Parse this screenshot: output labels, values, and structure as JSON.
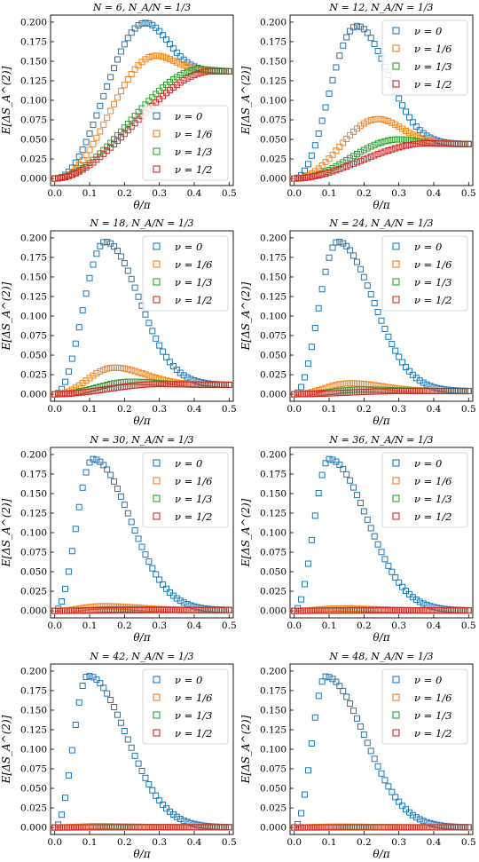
{
  "colors": {
    "series": [
      "#1f77b4",
      "#ff7f0e",
      "#2ca02c",
      "#d62728"
    ],
    "axis": "#000000",
    "legend_border": "#cccccc"
  },
  "chart_data": [
    {
      "type": "scatter",
      "marker": "open-square",
      "title": "N = 6, N_A/N = 1/3",
      "xlabel": "θ/π",
      "ylabel": "E[ΔS_A^(2)]",
      "xlim": [
        0.0,
        0.5
      ],
      "ylim": [
        0.0,
        0.2
      ],
      "legend": "bottom-right",
      "xticks": [
        "0.0",
        "0.1",
        "0.2",
        "0.3",
        "0.4",
        "0.5"
      ],
      "yticks": [
        "0.000",
        "0.025",
        "0.050",
        "0.075",
        "0.100",
        "0.125",
        "0.150",
        "0.175",
        "0.200"
      ],
      "series": [
        {
          "name": "ν = 0",
          "peak_x": 0.26,
          "peak_y": 0.199,
          "end_y": 0.137,
          "shape": "peak"
        },
        {
          "name": "ν = 1/6",
          "peak_x": 0.29,
          "peak_y": 0.157,
          "end_y": 0.137,
          "shape": "peak"
        },
        {
          "name": "ν = 1/3",
          "peak_x": 0.42,
          "peak_y": 0.14,
          "end_y": 0.137,
          "shape": "plateau"
        },
        {
          "name": "ν = 1/2",
          "peak_x": 0.45,
          "peak_y": 0.137,
          "end_y": 0.137,
          "shape": "plateau"
        }
      ]
    },
    {
      "type": "scatter",
      "marker": "open-square",
      "title": "N = 12, N_A/N = 1/3",
      "xlabel": "θ/π",
      "ylabel": "E[ΔS_A^(2)]",
      "xlim": [
        0.0,
        0.5
      ],
      "ylim": [
        0.0,
        0.2
      ],
      "legend": "top-right",
      "xticks": [
        "0.0",
        "0.1",
        "0.2",
        "0.3",
        "0.4",
        "0.5"
      ],
      "yticks": [
        "0.000",
        "0.025",
        "0.050",
        "0.075",
        "0.100",
        "0.125",
        "0.150",
        "0.175",
        "0.200"
      ],
      "series": [
        {
          "name": "ν = 0",
          "peak_x": 0.18,
          "peak_y": 0.195,
          "end_y": 0.044,
          "shape": "peak"
        },
        {
          "name": "ν = 1/6",
          "peak_x": 0.24,
          "peak_y": 0.076,
          "end_y": 0.044,
          "shape": "peak"
        },
        {
          "name": "ν = 1/3",
          "peak_x": 0.3,
          "peak_y": 0.05,
          "end_y": 0.044,
          "shape": "peak"
        },
        {
          "name": "ν = 1/2",
          "peak_x": 0.38,
          "peak_y": 0.045,
          "end_y": 0.044,
          "shape": "plateau"
        }
      ]
    },
    {
      "type": "scatter",
      "marker": "open-square",
      "title": "N = 18, N_A/N = 1/3",
      "xlabel": "θ/π",
      "ylabel": "E[ΔS_A^(2)]",
      "xlim": [
        0.0,
        0.5
      ],
      "ylim": [
        0.0,
        0.2
      ],
      "legend": "top-right",
      "xticks": [
        "0.0",
        "0.1",
        "0.2",
        "0.3",
        "0.4",
        "0.5"
      ],
      "yticks": [
        "0.000",
        "0.025",
        "0.050",
        "0.075",
        "0.100",
        "0.125",
        "0.150",
        "0.175",
        "0.200"
      ],
      "series": [
        {
          "name": "ν = 0",
          "peak_x": 0.145,
          "peak_y": 0.195,
          "end_y": 0.012,
          "shape": "peak"
        },
        {
          "name": "ν = 1/6",
          "peak_x": 0.17,
          "peak_y": 0.034,
          "end_y": 0.012,
          "shape": "peak"
        },
        {
          "name": "ν = 1/3",
          "peak_x": 0.22,
          "peak_y": 0.016,
          "end_y": 0.012,
          "shape": "peak"
        },
        {
          "name": "ν = 1/2",
          "peak_x": 0.3,
          "peak_y": 0.013,
          "end_y": 0.012,
          "shape": "plateau"
        }
      ]
    },
    {
      "type": "scatter",
      "marker": "open-square",
      "title": "N = 24, N_A/N = 1/3",
      "xlabel": "θ/π",
      "ylabel": "E[ΔS_A^(2)]",
      "xlim": [
        0.0,
        0.5
      ],
      "ylim": [
        0.0,
        0.2
      ],
      "legend": "top-right",
      "xticks": [
        "0.0",
        "0.1",
        "0.2",
        "0.3",
        "0.4",
        "0.5"
      ],
      "yticks": [
        "0.000",
        "0.025",
        "0.050",
        "0.075",
        "0.100",
        "0.125",
        "0.150",
        "0.175",
        "0.200"
      ],
      "series": [
        {
          "name": "ν = 0",
          "peak_x": 0.125,
          "peak_y": 0.195,
          "end_y": 0.004,
          "shape": "peak"
        },
        {
          "name": "ν = 1/6",
          "peak_x": 0.16,
          "peak_y": 0.014,
          "end_y": 0.004,
          "shape": "peak"
        },
        {
          "name": "ν = 1/3",
          "peak_x": 0.2,
          "peak_y": 0.006,
          "end_y": 0.004,
          "shape": "peak"
        },
        {
          "name": "ν = 1/2",
          "peak_x": 0.3,
          "peak_y": 0.004,
          "end_y": 0.004,
          "shape": "plateau"
        }
      ]
    },
    {
      "type": "scatter",
      "marker": "open-square",
      "title": "N = 30, N_A/N = 1/3",
      "xlabel": "θ/π",
      "ylabel": "E[ΔS_A^(2)]",
      "xlim": [
        0.0,
        0.5
      ],
      "ylim": [
        0.0,
        0.2
      ],
      "legend": "top-right",
      "xticks": [
        "0.0",
        "0.1",
        "0.2",
        "0.3",
        "0.4",
        "0.5"
      ],
      "yticks": [
        "0.000",
        "0.025",
        "0.050",
        "0.075",
        "0.100",
        "0.125",
        "0.150",
        "0.175",
        "0.200"
      ],
      "series": [
        {
          "name": "ν = 0",
          "peak_x": 0.11,
          "peak_y": 0.194,
          "end_y": 0.001,
          "shape": "peak"
        },
        {
          "name": "ν = 1/6",
          "peak_x": 0.14,
          "peak_y": 0.006,
          "end_y": 0.001,
          "shape": "peak"
        },
        {
          "name": "ν = 1/3",
          "peak_x": 0.2,
          "peak_y": 0.002,
          "end_y": 0.001,
          "shape": "peak"
        },
        {
          "name": "ν = 1/2",
          "peak_x": 0.3,
          "peak_y": 0.001,
          "end_y": 0.001,
          "shape": "plateau"
        }
      ]
    },
    {
      "type": "scatter",
      "marker": "open-square",
      "title": "N = 36, N_A/N = 1/3",
      "xlabel": "θ/π",
      "ylabel": "E[ΔS_A^(2)]",
      "xlim": [
        0.0,
        0.5
      ],
      "ylim": [
        0.0,
        0.2
      ],
      "legend": "top-right",
      "xticks": [
        "0.0",
        "0.1",
        "0.2",
        "0.3",
        "0.4",
        "0.5"
      ],
      "yticks": [
        "0.000",
        "0.025",
        "0.050",
        "0.075",
        "0.100",
        "0.125",
        "0.150",
        "0.175",
        "0.200"
      ],
      "series": [
        {
          "name": "ν = 0",
          "peak_x": 0.1,
          "peak_y": 0.194,
          "end_y": 0.0005,
          "shape": "peak"
        },
        {
          "name": "ν = 1/6",
          "peak_x": 0.13,
          "peak_y": 0.003,
          "end_y": 0.0005,
          "shape": "peak"
        },
        {
          "name": "ν = 1/3",
          "peak_x": 0.2,
          "peak_y": 0.001,
          "end_y": 0.0005,
          "shape": "peak"
        },
        {
          "name": "ν = 1/2",
          "peak_x": 0.3,
          "peak_y": 0.0005,
          "end_y": 0.0005,
          "shape": "plateau"
        }
      ]
    },
    {
      "type": "scatter",
      "marker": "open-square",
      "title": "N = 42, N_A/N = 1/3",
      "xlabel": "θ/π",
      "ylabel": "E[ΔS_A^(2)]",
      "xlim": [
        0.0,
        0.5
      ],
      "ylim": [
        0.0,
        0.2
      ],
      "legend": "top-right",
      "xticks": [
        "0.0",
        "0.1",
        "0.2",
        "0.3",
        "0.4",
        "0.5"
      ],
      "yticks": [
        "0.000",
        "0.025",
        "0.050",
        "0.075",
        "0.100",
        "0.125",
        "0.150",
        "0.175",
        "0.200"
      ],
      "series": [
        {
          "name": "ν = 0",
          "peak_x": 0.095,
          "peak_y": 0.194,
          "end_y": 0.0002,
          "shape": "peak"
        },
        {
          "name": "ν = 1/6",
          "peak_x": 0.12,
          "peak_y": 0.0015,
          "end_y": 0.0002,
          "shape": "peak"
        },
        {
          "name": "ν = 1/3",
          "peak_x": 0.2,
          "peak_y": 0.0005,
          "end_y": 0.0002,
          "shape": "peak"
        },
        {
          "name": "ν = 1/2",
          "peak_x": 0.3,
          "peak_y": 0.0002,
          "end_y": 0.0002,
          "shape": "plateau"
        }
      ]
    },
    {
      "type": "scatter",
      "marker": "open-square",
      "title": "N = 48, N_A/N = 1/3",
      "xlabel": "θ/π",
      "ylabel": "E[ΔS_A^(2)]",
      "xlim": [
        0.0,
        0.5
      ],
      "ylim": [
        0.0,
        0.2
      ],
      "legend": "top-right",
      "xticks": [
        "0.0",
        "0.1",
        "0.2",
        "0.3",
        "0.4",
        "0.5"
      ],
      "yticks": [
        "0.000",
        "0.025",
        "0.050",
        "0.075",
        "0.100",
        "0.125",
        "0.150",
        "0.175",
        "0.200"
      ],
      "series": [
        {
          "name": "ν = 0",
          "peak_x": 0.09,
          "peak_y": 0.193,
          "end_y": 0.0001,
          "shape": "peak"
        },
        {
          "name": "ν = 1/6",
          "peak_x": 0.12,
          "peak_y": 0.001,
          "end_y": 0.0001,
          "shape": "peak"
        },
        {
          "name": "ν = 1/3",
          "peak_x": 0.2,
          "peak_y": 0.0003,
          "end_y": 0.0001,
          "shape": "peak"
        },
        {
          "name": "ν = 1/2",
          "peak_x": 0.3,
          "peak_y": 0.0001,
          "end_y": 0.0001,
          "shape": "plateau"
        }
      ]
    }
  ]
}
